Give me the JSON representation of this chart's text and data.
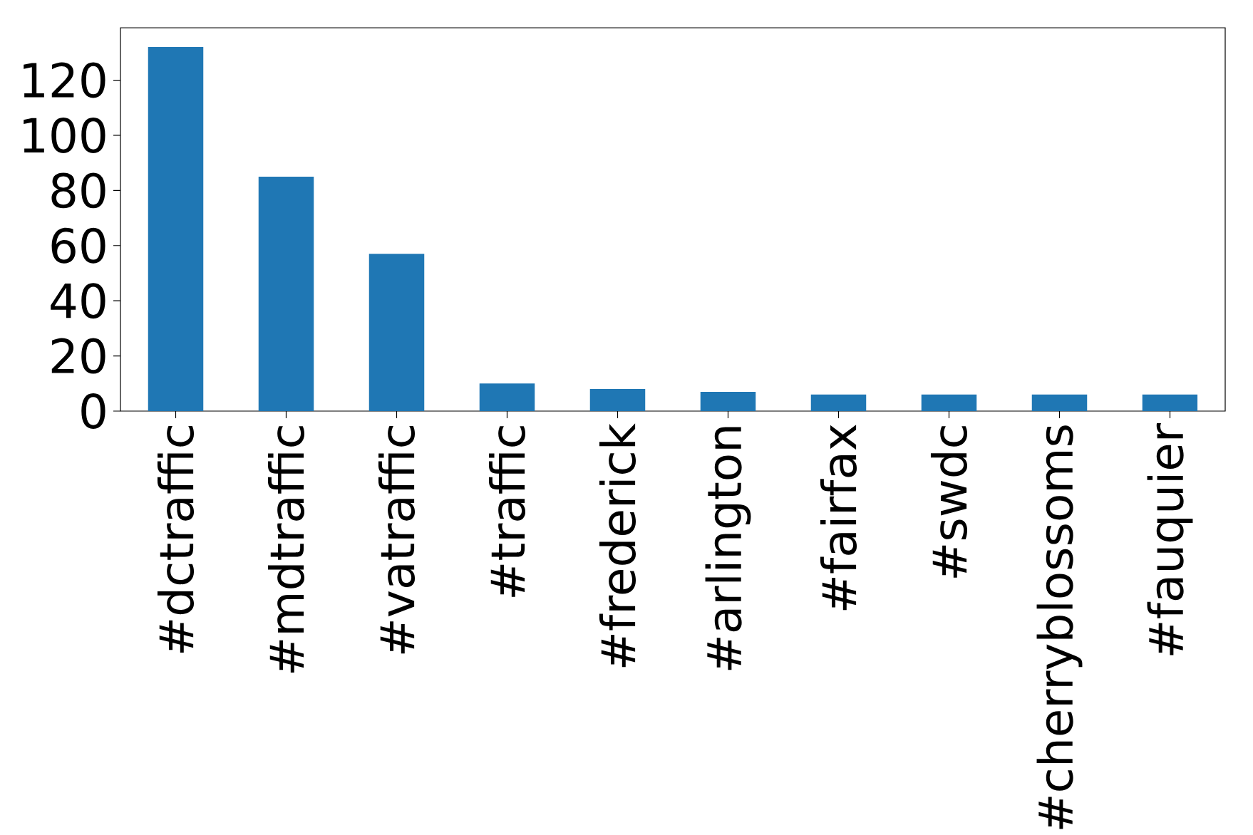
{
  "chart_data": {
    "type": "bar",
    "categories": [
      "#dctraffic",
      "#mdtraffic",
      "#vatraffic",
      "#traffic",
      "#frederick",
      "#arlington",
      "#fairfax",
      "#swdc",
      "#cherryblossoms",
      "#fauquier"
    ],
    "values": [
      132,
      85,
      57,
      10,
      8,
      7,
      6,
      6,
      6,
      6
    ],
    "color": "#1f77b4",
    "ylim": [
      0,
      139
    ],
    "yticks": [
      0,
      20,
      40,
      60,
      80,
      100,
      120
    ]
  }
}
